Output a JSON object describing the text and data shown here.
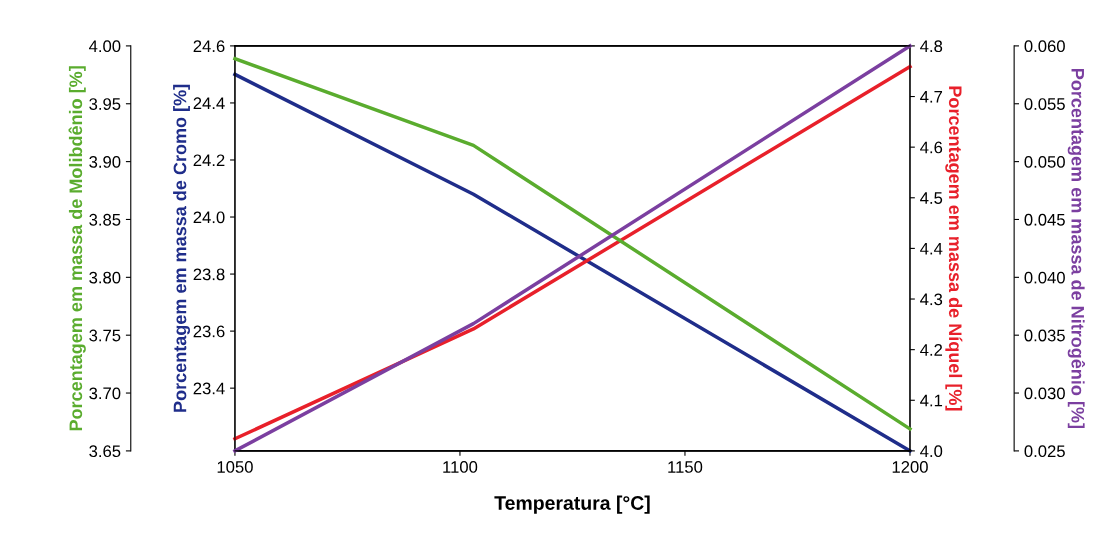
{
  "chart_data": [
    {
      "type": "line",
      "xlabel": "Temperatura [°C]",
      "ylabel": "Porcentagem em massa de Cromo [%]",
      "y2label": "Porcentagem em massa de Níquel [%]",
      "x": [
        1050,
        1103,
        1200
      ],
      "xlim": [
        1050,
        1200
      ],
      "xticks": [
        1050,
        1100,
        1150,
        1200
      ],
      "ylim": [
        23.18,
        24.6
      ],
      "yticks": [
        {
          "value": 23.4,
          "label": "23.4"
        },
        {
          "value": 23.6,
          "label": "23.6"
        },
        {
          "value": 23.8,
          "label": "23.8"
        },
        {
          "value": 24.0,
          "label": "24.0"
        },
        {
          "value": 24.2,
          "label": "24.2"
        },
        {
          "value": 24.4,
          "label": "24.4"
        },
        {
          "value": 24.6,
          "label": "24.6"
        }
      ],
      "y2lim": [
        4.0,
        4.8
      ],
      "y2ticks": [
        {
          "value": 4.0,
          "label": "4.0"
        },
        {
          "value": 4.1,
          "label": "4.1"
        },
        {
          "value": 4.2,
          "label": "4.2"
        },
        {
          "value": 4.3,
          "label": "4.3"
        },
        {
          "value": 4.4,
          "label": "4.4"
        },
        {
          "value": 4.5,
          "label": "4.5"
        },
        {
          "value": 4.6,
          "label": "4.6"
        },
        {
          "value": 4.7,
          "label": "4.7"
        },
        {
          "value": 4.8,
          "label": "4.8"
        }
      ],
      "series": [
        {
          "axis": "y",
          "color": "#1f2d8a",
          "values": [
            24.5,
            24.08,
            23.18
          ]
        },
        {
          "axis": "y2",
          "color": "#e8202a",
          "values": [
            4.024,
            4.241,
            4.759
          ]
        }
      ],
      "grid": false,
      "legend": false,
      "line_style": "solid",
      "marker": "none"
    },
    {
      "type": "line",
      "ylabel": "Porcentagem em massa de Molibdênio [%]",
      "y2label": "Porcentagem em massa de Nitrogênio [%]",
      "x": [
        1050,
        1103,
        1200
      ],
      "xlim": [
        1050,
        1200
      ],
      "tick_labels": "y",
      "ylim": [
        3.65,
        4.0
      ],
      "yticks": [
        {
          "value": 3.65,
          "label": "3.65"
        },
        {
          "value": 3.7,
          "label": "3.70"
        },
        {
          "value": 3.75,
          "label": "3.75"
        },
        {
          "value": 3.8,
          "label": "3.80"
        },
        {
          "value": 3.85,
          "label": "3.85"
        },
        {
          "value": 3.9,
          "label": "3.90"
        },
        {
          "value": 3.95,
          "label": "3.95"
        },
        {
          "value": 4.0,
          "label": "4.00"
        }
      ],
      "y2lim": [
        0.025,
        0.06
      ],
      "y2ticks": [
        {
          "value": 0.025,
          "label": "0.025"
        },
        {
          "value": 0.03,
          "label": "0.030"
        },
        {
          "value": 0.035,
          "label": "0.035"
        },
        {
          "value": 0.04,
          "label": "0.040"
        },
        {
          "value": 0.045,
          "label": "0.045"
        },
        {
          "value": 0.05,
          "label": "0.050"
        },
        {
          "value": 0.055,
          "label": "0.055"
        },
        {
          "value": 0.06,
          "label": "0.060"
        }
      ],
      "series": [
        {
          "axis": "y",
          "color": "#5aac2e",
          "values": [
            3.989,
            3.914,
            3.669
          ]
        },
        {
          "axis": "y2",
          "color": "#7b3fa0",
          "values": [
            0.025,
            0.036,
            0.06
          ]
        }
      ],
      "grid": false,
      "legend": false,
      "line_style": "solid",
      "marker": "none"
    }
  ]
}
